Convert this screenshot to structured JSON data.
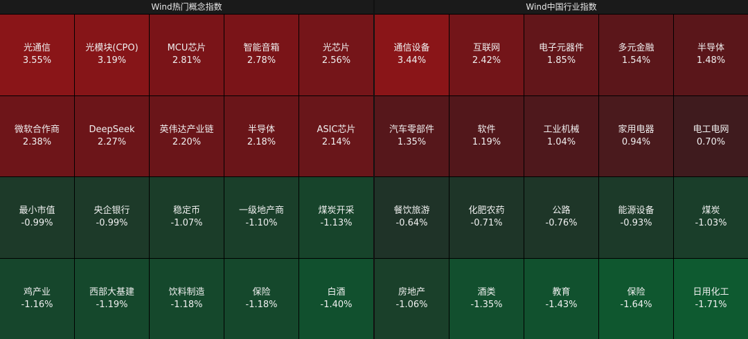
{
  "panels": {
    "left": {
      "title": "Wind热门概念指数",
      "cells": [
        {
          "name": "光通信",
          "value": "3.55%",
          "color": "#8a1518"
        },
        {
          "name": "光模块(CPO)",
          "value": "3.19%",
          "color": "#861518"
        },
        {
          "name": "MCU芯片",
          "value": "2.81%",
          "color": "#7a1418"
        },
        {
          "name": "智能音箱",
          "value": "2.78%",
          "color": "#7a1418"
        },
        {
          "name": "光芯片",
          "value": "2.56%",
          "color": "#751519"
        },
        {
          "name": "微软合作商",
          "value": "2.38%",
          "color": "#6e1519"
        },
        {
          "name": "DeepSeek",
          "value": "2.27%",
          "color": "#6c1519"
        },
        {
          "name": "英伟达产业链",
          "value": "2.20%",
          "color": "#6a1519"
        },
        {
          "name": "半导体",
          "value": "2.18%",
          "color": "#6a1519"
        },
        {
          "name": "ASIC芯片",
          "value": "2.14%",
          "color": "#69161a"
        },
        {
          "name": "最小市值",
          "value": "-0.99%",
          "color": "#1d3a29"
        },
        {
          "name": "央企银行",
          "value": "-0.99%",
          "color": "#1d3a29"
        },
        {
          "name": "稳定币",
          "value": "-1.07%",
          "color": "#1b3d29"
        },
        {
          "name": "一级地产商",
          "value": "-1.10%",
          "color": "#1a3f2a"
        },
        {
          "name": "煤炭开采",
          "value": "-1.13%",
          "color": "#17442b"
        },
        {
          "name": "鸡产业",
          "value": "-1.16%",
          "color": "#16462c"
        },
        {
          "name": "西部大基建",
          "value": "-1.19%",
          "color": "#15482c"
        },
        {
          "name": "饮料制造",
          "value": "-1.18%",
          "color": "#15482c"
        },
        {
          "name": "保险",
          "value": "-1.18%",
          "color": "#15482c"
        },
        {
          "name": "白酒",
          "value": "-1.40%",
          "color": "#11502e"
        }
      ]
    },
    "right": {
      "title": "Wind中国行业指数",
      "cells": [
        {
          "name": "通信设备",
          "value": "3.44%",
          "color": "#8a1518"
        },
        {
          "name": "互联网",
          "value": "2.42%",
          "color": "#731519"
        },
        {
          "name": "电子元器件",
          "value": "1.85%",
          "color": "#62161a"
        },
        {
          "name": "多元金融",
          "value": "1.54%",
          "color": "#5b161a"
        },
        {
          "name": "半导体",
          "value": "1.48%",
          "color": "#5a161a"
        },
        {
          "name": "汽车零部件",
          "value": "1.35%",
          "color": "#56171b"
        },
        {
          "name": "软件",
          "value": "1.19%",
          "color": "#52171b"
        },
        {
          "name": "工业机械",
          "value": "1.04%",
          "color": "#4e181c"
        },
        {
          "name": "家用电器",
          "value": "0.94%",
          "color": "#4a1a1d"
        },
        {
          "name": "电工电网",
          "value": "0.70%",
          "color": "#3f1b1e"
        },
        {
          "name": "餐饮旅游",
          "value": "-0.64%",
          "color": "#1f3328"
        },
        {
          "name": "化肥农药",
          "value": "-0.71%",
          "color": "#1e3528"
        },
        {
          "name": "公路",
          "value": "-0.76%",
          "color": "#1e3628"
        },
        {
          "name": "能源设备",
          "value": "-0.93%",
          "color": "#1c3a29"
        },
        {
          "name": "煤炭",
          "value": "-1.03%",
          "color": "#1a3e2a"
        },
        {
          "name": "房地产",
          "value": "-1.06%",
          "color": "#1a402a"
        },
        {
          "name": "酒类",
          "value": "-1.35%",
          "color": "#124f2e"
        },
        {
          "name": "教育",
          "value": "-1.43%",
          "color": "#11512e"
        },
        {
          "name": "保险",
          "value": "-1.64%",
          "color": "#0f572f"
        },
        {
          "name": "日用化工",
          "value": "-1.71%",
          "color": "#0e5a30"
        }
      ]
    }
  },
  "chart_data": [
    {
      "type": "heatmap",
      "title": "Wind热门概念指数",
      "categories": [
        "光通信",
        "光模块(CPO)",
        "MCU芯片",
        "智能音箱",
        "光芯片",
        "微软合作商",
        "DeepSeek",
        "英伟达产业链",
        "半导体",
        "ASIC芯片",
        "最小市值",
        "央企银行",
        "稳定币",
        "一级地产商",
        "煤炭开采",
        "鸡产业",
        "西部大基建",
        "饮料制造",
        "保险",
        "白酒"
      ],
      "values": [
        3.55,
        3.19,
        2.81,
        2.78,
        2.56,
        2.38,
        2.27,
        2.2,
        2.18,
        2.14,
        -0.99,
        -0.99,
        -1.07,
        -1.1,
        -1.13,
        -1.16,
        -1.19,
        -1.18,
        -1.18,
        -1.4
      ],
      "unit": "%"
    },
    {
      "type": "heatmap",
      "title": "Wind中国行业指数",
      "categories": [
        "通信设备",
        "互联网",
        "电子元器件",
        "多元金融",
        "半导体",
        "汽车零部件",
        "软件",
        "工业机械",
        "家用电器",
        "电工电网",
        "餐饮旅游",
        "化肥农药",
        "公路",
        "能源设备",
        "煤炭",
        "房地产",
        "酒类",
        "教育",
        "保险",
        "日用化工"
      ],
      "values": [
        3.44,
        2.42,
        1.85,
        1.54,
        1.48,
        1.35,
        1.19,
        1.04,
        0.94,
        0.7,
        -0.64,
        -0.71,
        -0.76,
        -0.93,
        -1.03,
        -1.06,
        -1.35,
        -1.43,
        -1.64,
        -1.71
      ],
      "unit": "%"
    }
  ]
}
